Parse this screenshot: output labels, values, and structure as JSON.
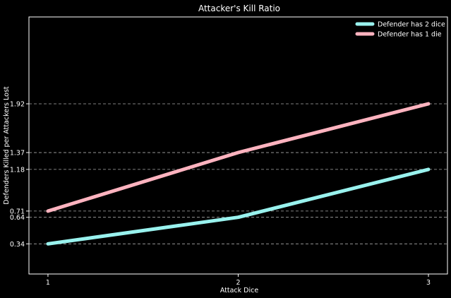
{
  "chart_data": {
    "type": "line",
    "title": "Attacker's Kill Ratio",
    "xlabel": "Attack Dice",
    "ylabel": "Defenders Killed per Attackers Lost",
    "x": [
      1,
      2,
      3
    ],
    "xticks": [
      "1",
      "2",
      "3"
    ],
    "yticks": [
      0.34,
      0.64,
      0.71,
      1.18,
      1.37,
      1.92
    ],
    "ytick_labels": [
      "0.34",
      "0.64",
      "0.71",
      "1.18",
      "1.37",
      "1.92"
    ],
    "ylim": [
      0.0,
      2.9
    ],
    "xlim": [
      0.9,
      3.1
    ],
    "grid": "horizontal-dashed",
    "legend_position": "top-right",
    "series": [
      {
        "name": "Defender has 2 dice",
        "values": [
          0.34,
          0.64,
          1.18
        ],
        "color": "#99f2ee"
      },
      {
        "name": "Defender has 1 die",
        "values": [
          0.71,
          1.37,
          1.92
        ],
        "color": "#ffb3bf"
      }
    ]
  }
}
